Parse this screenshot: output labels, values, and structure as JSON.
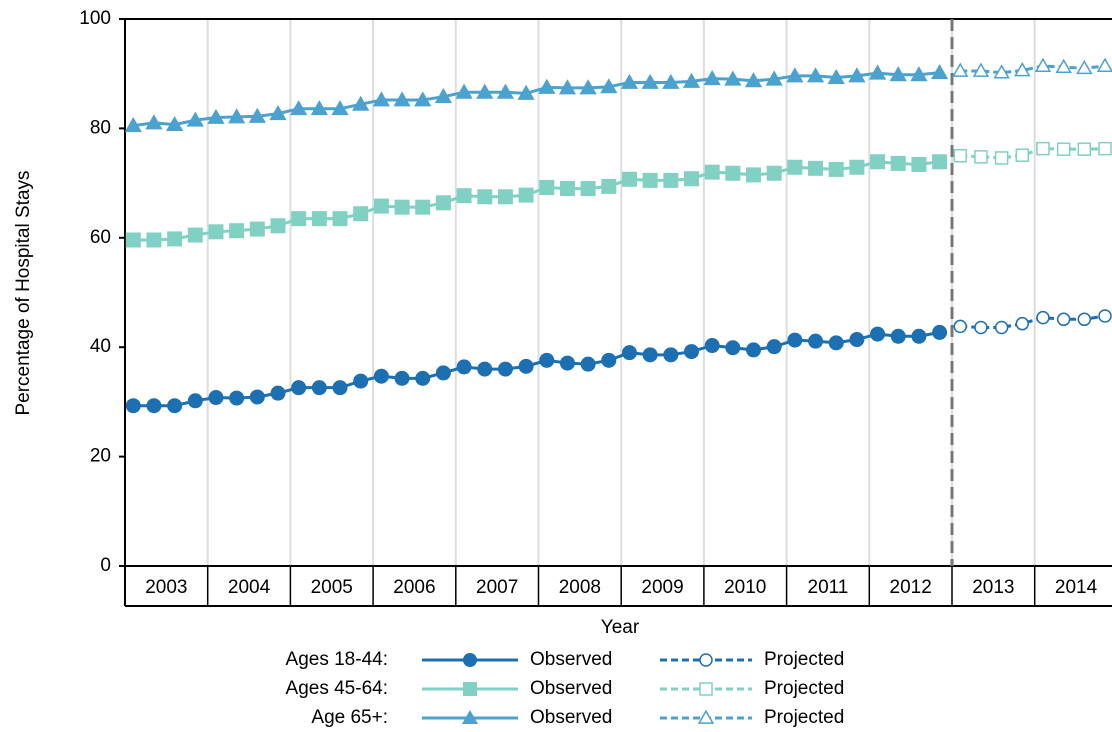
{
  "chart_data": {
    "type": "line",
    "y_label": "Percentage of Hospital Stays",
    "x_label": "Year",
    "categories": [
      "2003",
      null,
      null,
      null,
      "2004",
      null,
      null,
      null,
      "2005",
      null,
      null,
      null,
      "2006",
      null,
      null,
      null,
      "2007",
      null,
      null,
      null,
      "2008",
      null,
      null,
      null,
      "2009",
      null,
      null,
      null,
      "2010",
      null,
      null,
      null,
      "2011",
      null,
      null,
      null,
      "2012",
      null,
      null,
      null,
      "2013",
      null,
      null,
      null,
      "2014",
      null,
      null,
      null
    ],
    "ylim": [
      0,
      100
    ],
    "yticks": [
      0,
      20,
      40,
      60,
      80,
      100
    ],
    "grid": "x",
    "groups": [
      {
        "label": "Ages 18-44:",
        "color": "#1c6fb0",
        "marker": "circle"
      },
      {
        "label": "Ages 45-64:",
        "color": "#80d0c4",
        "marker": "square"
      },
      {
        "label": "Age 65+:",
        "color": "#4ba2cf",
        "marker": "triangle"
      }
    ],
    "series": [
      {
        "name": "Observed",
        "group": 0,
        "style": "solid",
        "values": [
          29.3,
          29.3,
          29.3,
          30.2,
          30.8,
          30.7,
          30.9,
          31.6,
          32.6,
          32.6,
          32.6,
          33.8,
          34.7,
          34.3,
          34.3,
          35.3,
          36.4,
          36.0,
          36.0,
          36.5,
          37.6,
          37.1,
          36.9,
          37.6,
          39.0,
          38.6,
          38.6,
          39.2,
          40.3,
          39.9,
          39.5,
          40.1,
          41.3,
          41.1,
          40.8,
          41.4,
          42.4,
          42.0,
          42.0,
          42.7,
          null,
          null,
          null,
          null,
          null,
          null,
          null,
          null
        ]
      },
      {
        "name": "Projected",
        "group": 0,
        "style": "dashed",
        "values": [
          null,
          null,
          null,
          null,
          null,
          null,
          null,
          null,
          null,
          null,
          null,
          null,
          null,
          null,
          null,
          null,
          null,
          null,
          null,
          null,
          null,
          null,
          null,
          null,
          null,
          null,
          null,
          null,
          null,
          null,
          null,
          null,
          null,
          null,
          null,
          null,
          null,
          null,
          null,
          null,
          43.8,
          43.6,
          43.6,
          44.3,
          45.4,
          45.1,
          45.1,
          45.7
        ]
      },
      {
        "name": "Observed",
        "group": 1,
        "style": "solid",
        "values": [
          59.6,
          59.6,
          59.8,
          60.5,
          61.1,
          61.3,
          61.6,
          62.2,
          63.5,
          63.5,
          63.5,
          64.4,
          65.8,
          65.6,
          65.6,
          66.4,
          67.7,
          67.5,
          67.5,
          67.8,
          69.2,
          69.0,
          69.0,
          69.4,
          70.7,
          70.5,
          70.5,
          70.8,
          72.0,
          71.8,
          71.5,
          71.8,
          72.9,
          72.7,
          72.5,
          72.9,
          73.9,
          73.6,
          73.4,
          73.9,
          null,
          null,
          null,
          null,
          null,
          null,
          null,
          null
        ]
      },
      {
        "name": "Projected",
        "group": 1,
        "style": "dashed",
        "values": [
          null,
          null,
          null,
          null,
          null,
          null,
          null,
          null,
          null,
          null,
          null,
          null,
          null,
          null,
          null,
          null,
          null,
          null,
          null,
          null,
          null,
          null,
          null,
          null,
          null,
          null,
          null,
          null,
          null,
          null,
          null,
          null,
          null,
          null,
          null,
          null,
          null,
          null,
          null,
          null,
          75.0,
          74.8,
          74.6,
          75.1,
          76.3,
          76.2,
          76.2,
          76.3
        ]
      },
      {
        "name": "Observed",
        "group": 2,
        "style": "solid",
        "values": [
          80.5,
          81.0,
          80.7,
          81.5,
          82.0,
          82.1,
          82.2,
          82.7,
          83.6,
          83.6,
          83.6,
          84.4,
          85.2,
          85.2,
          85.2,
          85.8,
          86.6,
          86.6,
          86.6,
          86.4,
          87.5,
          87.4,
          87.4,
          87.6,
          88.4,
          88.4,
          88.4,
          88.6,
          89.1,
          89.0,
          88.7,
          89.0,
          89.6,
          89.6,
          89.3,
          89.6,
          90.1,
          89.8,
          89.8,
          90.2,
          null,
          null,
          null,
          null,
          null,
          null,
          null,
          null
        ]
      },
      {
        "name": "Projected",
        "group": 2,
        "style": "dashed",
        "values": [
          null,
          null,
          null,
          null,
          null,
          null,
          null,
          null,
          null,
          null,
          null,
          null,
          null,
          null,
          null,
          null,
          null,
          null,
          null,
          null,
          null,
          null,
          null,
          null,
          null,
          null,
          null,
          null,
          null,
          null,
          null,
          null,
          null,
          null,
          null,
          null,
          null,
          null,
          null,
          null,
          90.5,
          90.5,
          90.2,
          90.6,
          91.4,
          91.2,
          91.0,
          91.4
        ]
      }
    ]
  }
}
